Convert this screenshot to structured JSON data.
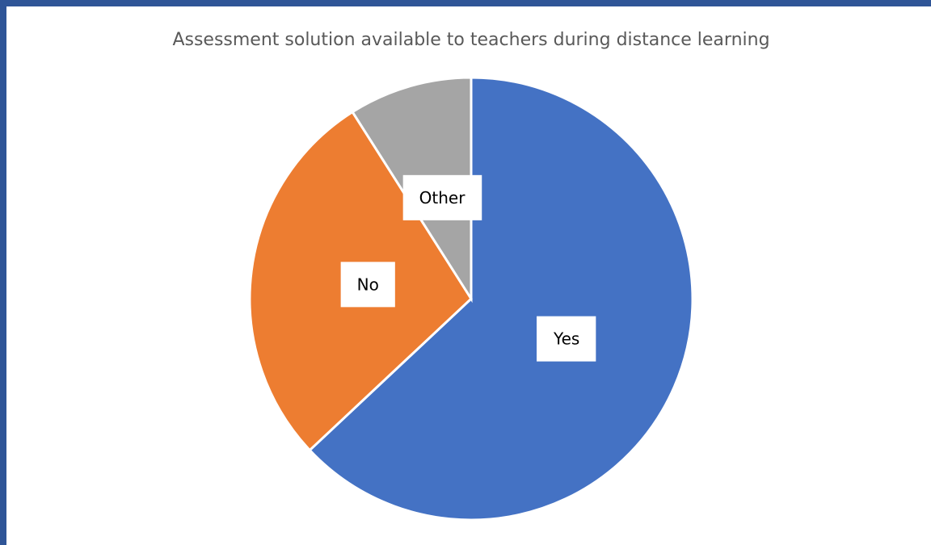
{
  "chart_data": {
    "type": "pie",
    "title": "Assessment solution available to teachers during distance learning",
    "categories": [
      "Yes",
      "No",
      "Other"
    ],
    "values": [
      63,
      28,
      9
    ],
    "colors": [
      "#4472c4",
      "#ed7d31",
      "#a5a5a5"
    ]
  }
}
